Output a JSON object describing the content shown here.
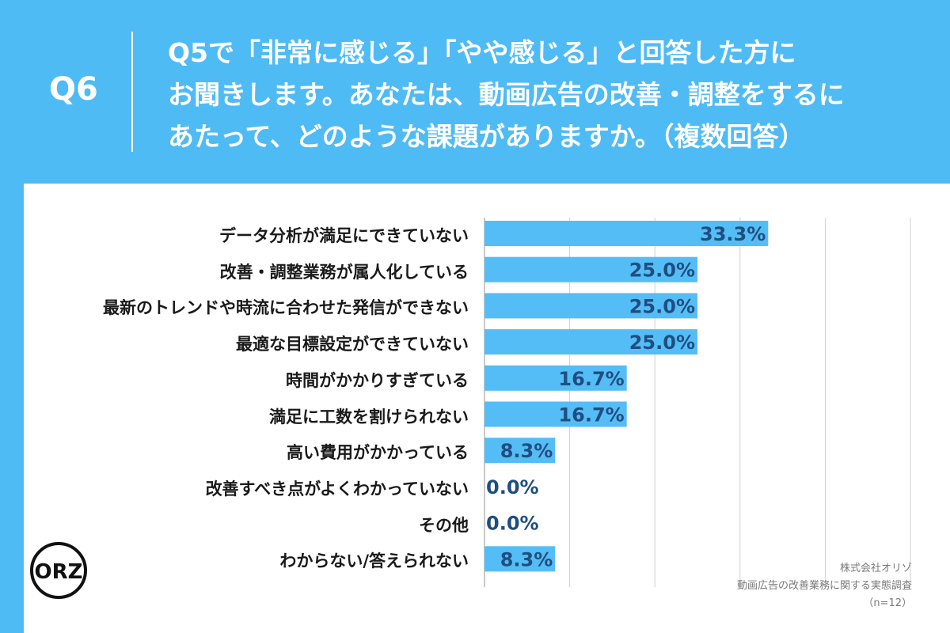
{
  "header": {
    "qnum": "Q6",
    "lines": [
      "Q5で「非常に感じる」「やや感じる」と回答した方に",
      "お聞きします。あなたは、動画広告の改善・調整をするに",
      "あたって、どのような課題がありますか。（複数回答）"
    ]
  },
  "colors": {
    "background": "#4fbbf5",
    "bar": "#55bdf6",
    "value_text": "#1f4e80",
    "grid": "#d0d0d0"
  },
  "chart_data": {
    "type": "bar",
    "orientation": "horizontal",
    "categories": [
      "データ分析が満足にできていない",
      "改善・調整業務が属人化している",
      "最新のトレンドや時流に合わせた発信ができない",
      "最適な目標設定ができていない",
      "時間がかかりすぎている",
      "満足に工数を割けられない",
      "高い費用がかかっている",
      "改善すべき点がよくわかっていない",
      "その他",
      "わからない/答えられない"
    ],
    "values": [
      33.3,
      25.0,
      25.0,
      25.0,
      16.7,
      16.7,
      8.3,
      0.0,
      0.0,
      8.3
    ],
    "value_labels": [
      "33.3%",
      "25.0%",
      "25.0%",
      "25.0%",
      "16.7%",
      "16.7%",
      "8.3%",
      "0.0%",
      "0.0%",
      "8.3%"
    ],
    "xlim": [
      0,
      50
    ],
    "grid": true
  },
  "logo": {
    "name": "orizo-logo",
    "text": "ORZ"
  },
  "source": {
    "company": "株式会社オリゾ",
    "survey": "動画広告の改善業務に関する実態調査",
    "n": "（n=12）"
  }
}
